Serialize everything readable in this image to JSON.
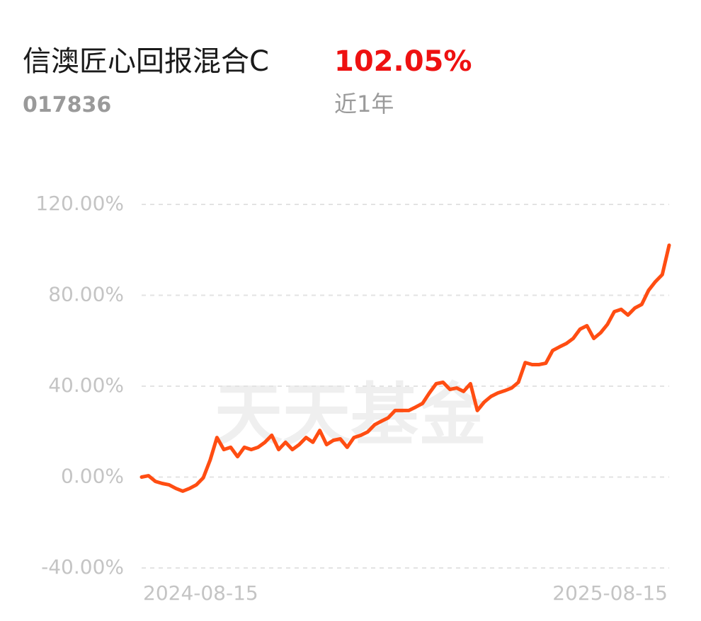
{
  "chart_data": {
    "type": "line",
    "title": "信澳匠心回报混合C",
    "return_label": "102.05%",
    "code": "017836",
    "period": "近1年",
    "watermark": "天天基金",
    "categories": [
      "2024-08-15",
      null,
      null,
      null,
      null,
      null,
      null,
      null,
      null,
      null,
      null,
      null,
      null,
      null,
      null,
      null,
      null,
      null,
      null,
      null,
      null,
      null,
      null,
      null,
      null,
      null,
      null,
      null,
      null,
      null,
      null,
      null,
      null,
      null,
      null,
      null,
      null,
      null,
      null,
      null,
      null,
      null,
      null,
      null,
      null,
      null,
      null,
      null,
      null,
      null,
      null,
      null,
      null,
      null,
      null,
      null,
      null,
      null,
      null,
      null,
      null,
      null,
      null,
      null,
      null,
      null,
      null,
      null,
      null,
      null,
      null,
      null,
      null,
      null,
      null,
      null,
      null,
      "2025-08-15"
    ],
    "series": [
      {
        "name": "信澳匠心回报混合C",
        "color": "#ff4d12",
        "values": [
          0,
          0.6,
          -1.9,
          -2.8,
          -3.4,
          -5.0,
          -6.2,
          -5.0,
          -3.4,
          -0.3,
          7.5,
          17.4,
          12.1,
          13.1,
          9.0,
          13.1,
          12.1,
          13.1,
          15.3,
          18.4,
          12.1,
          15.3,
          12.1,
          14.3,
          17.4,
          15.3,
          20.5,
          14.3,
          16.2,
          16.8,
          13.1,
          17.4,
          18.4,
          19.9,
          23.0,
          24.6,
          26.1,
          29.3,
          29.3,
          29.3,
          30.8,
          32.4,
          37.0,
          41.1,
          41.7,
          38.6,
          39.2,
          37.7,
          41.1,
          29.3,
          33.0,
          35.5,
          37.0,
          38.0,
          39.2,
          41.7,
          50.4,
          49.5,
          49.5,
          50.1,
          55.7,
          57.3,
          58.8,
          61.0,
          65.1,
          66.6,
          61.0,
          63.5,
          67.2,
          72.8,
          73.8,
          71.3,
          74.4,
          76.0,
          82.2,
          86.0,
          89.1,
          102.05
        ]
      }
    ],
    "ylim": [
      -40,
      120
    ],
    "yticks": [
      {
        "value": 120,
        "label": "120.00%"
      },
      {
        "value": 80,
        "label": "80.00%"
      },
      {
        "value": 40,
        "label": "40.00%"
      },
      {
        "value": 0,
        "label": "0.00%"
      },
      {
        "value": -40,
        "label": "-40.00%"
      }
    ],
    "grid": true
  }
}
